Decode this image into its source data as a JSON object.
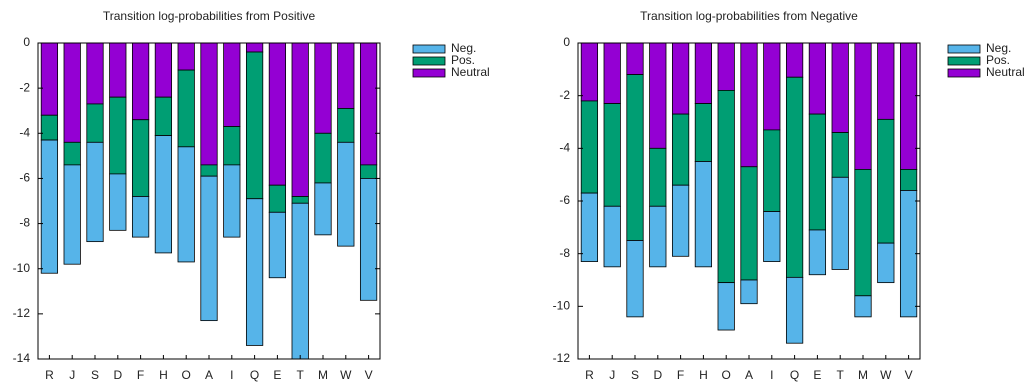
{
  "chart_data": [
    {
      "type": "bar",
      "stacked": true,
      "title": "Transition log-probabilities from Positive",
      "categories": [
        "R",
        "J",
        "S",
        "D",
        "F",
        "H",
        "O",
        "A",
        "I",
        "Q",
        "E",
        "T",
        "M",
        "W",
        "V"
      ],
      "series": [
        {
          "name": "Neg.",
          "color": "#56b4e9",
          "values": [
            -5.9,
            -4.4,
            -4.4,
            -2.5,
            -1.8,
            -5.2,
            -5.1,
            -6.4,
            -3.2,
            -6.5,
            -2.9,
            -7.4,
            -2.3,
            -4.6,
            -5.4
          ]
        },
        {
          "name": "Pos.",
          "color": "#009e73",
          "values": [
            -1.1,
            -1.0,
            -1.7,
            -3.4,
            -3.4,
            -1.7,
            -3.4,
            -0.5,
            -1.7,
            -6.5,
            -1.2,
            -0.3,
            -2.2,
            -1.5,
            -0.6
          ]
        },
        {
          "name": "Neutral",
          "color": "#9400d3",
          "values": [
            -3.2,
            -4.4,
            -2.7,
            -2.4,
            -3.4,
            -2.4,
            -1.2,
            -5.4,
            -3.7,
            -0.4,
            -6.3,
            -6.8,
            -4.0,
            -2.9,
            -5.4
          ]
        }
      ],
      "ylim": [
        -14,
        0
      ],
      "yticks": [
        0,
        -2,
        -4,
        -6,
        -8,
        -10,
        -12,
        -14
      ],
      "legend": "upper right"
    },
    {
      "type": "bar",
      "stacked": true,
      "title": "Transition log-probabilities from Negative",
      "categories": [
        "R",
        "J",
        "S",
        "D",
        "F",
        "H",
        "O",
        "A",
        "I",
        "Q",
        "E",
        "T",
        "M",
        "W",
        "V"
      ],
      "series": [
        {
          "name": "Neg.",
          "color": "#56b4e9",
          "values": [
            -2.6,
            -2.3,
            -2.9,
            -2.3,
            -2.7,
            -4.0,
            -1.8,
            -0.9,
            -1.9,
            -2.5,
            -1.7,
            -3.5,
            -0.8,
            -1.5,
            -4.8
          ]
        },
        {
          "name": "Pos.",
          "color": "#009e73",
          "values": [
            -3.5,
            -3.9,
            -6.3,
            -2.2,
            -2.7,
            -2.2,
            -7.3,
            -4.3,
            -3.1,
            -7.6,
            -4.4,
            -1.7,
            -4.8,
            -4.7,
            -0.8
          ]
        },
        {
          "name": "Neutral",
          "color": "#9400d3",
          "values": [
            -2.2,
            -2.3,
            -1.2,
            -4.0,
            -2.7,
            -2.3,
            -1.8,
            -4.7,
            -3.3,
            -1.3,
            -2.7,
            -3.4,
            -4.8,
            -2.9,
            -4.8
          ]
        }
      ],
      "ylim": [
        -12,
        0
      ],
      "yticks": [
        0,
        -2,
        -4,
        -6,
        -8,
        -10,
        -12
      ],
      "legend": "upper right"
    }
  ]
}
